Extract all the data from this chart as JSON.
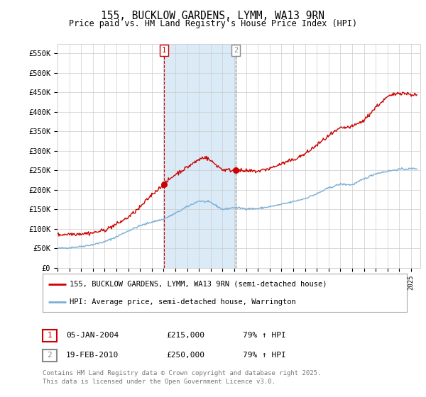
{
  "title_line1": "155, BUCKLOW GARDENS, LYMM, WA13 9RN",
  "title_line2": "Price paid vs. HM Land Registry's House Price Index (HPI)",
  "legend_line1": "155, BUCKLOW GARDENS, LYMM, WA13 9RN (semi-detached house)",
  "legend_line2": "HPI: Average price, semi-detached house, Warrington",
  "footnote_line1": "Contains HM Land Registry data © Crown copyright and database right 2025.",
  "footnote_line2": "This data is licensed under the Open Government Licence v3.0.",
  "transaction1_date": "05-JAN-2004",
  "transaction1_price": "£215,000",
  "transaction1_hpi": "79% ↑ HPI",
  "transaction2_date": "19-FEB-2010",
  "transaction2_price": "£250,000",
  "transaction2_hpi": "79% ↑ HPI",
  "red_color": "#cc0000",
  "blue_color": "#7aaed6",
  "shaded_color": "#daeaf7",
  "grid_color": "#cccccc",
  "background_color": "#ffffff",
  "yticks": [
    0,
    50000,
    100000,
    150000,
    200000,
    250000,
    300000,
    350000,
    400000,
    450000,
    500000,
    550000
  ],
  "ytick_labels": [
    "£0",
    "£50K",
    "£100K",
    "£150K",
    "£200K",
    "£250K",
    "£300K",
    "£350K",
    "£400K",
    "£450K",
    "£500K",
    "£550K"
  ],
  "vline1_x": 2004.04,
  "vline2_x": 2010.12,
  "marker1_red_y": 215000,
  "marker2_red_y": 250000,
  "xmin": 1995.0,
  "xmax": 2025.8,
  "ylim_min": 0,
  "ylim_max": 575000
}
